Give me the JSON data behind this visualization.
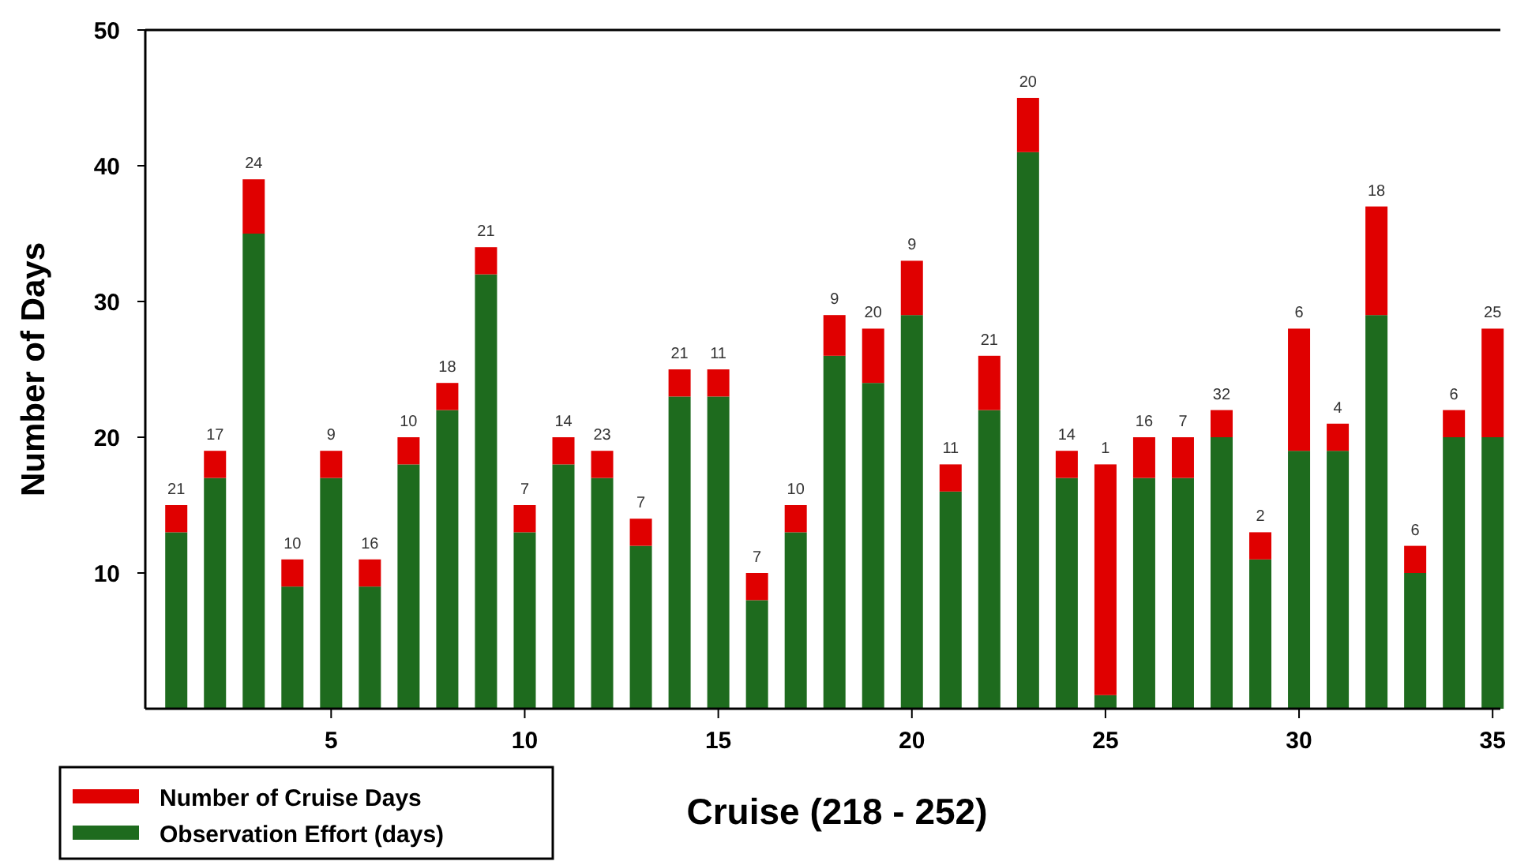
{
  "chart_data": {
    "type": "bar",
    "xlabel": "Cruise (218 - 252)",
    "ylabel": "Number of Days",
    "stacked": true,
    "x": [
      1,
      2,
      3,
      4,
      5,
      6,
      7,
      8,
      9,
      10,
      11,
      12,
      13,
      14,
      15,
      16,
      17,
      18,
      19,
      20,
      21,
      22,
      23,
      24,
      25,
      26,
      27,
      28,
      29,
      30,
      31,
      32,
      33,
      34,
      35
    ],
    "series": [
      {
        "name": "Observation Effort (days)",
        "color": "#1e6b1e",
        "values": [
          13,
          17,
          35,
          9,
          17,
          9,
          18,
          22,
          32,
          13,
          18,
          17,
          12,
          23,
          23,
          8,
          13,
          26,
          24,
          29,
          16,
          22,
          41,
          17,
          1,
          17,
          17,
          20,
          11,
          19,
          19,
          29,
          10,
          20,
          20
        ]
      },
      {
        "name": "Number of Cruise Days",
        "color": "#e00000",
        "values": [
          2,
          2,
          4,
          2,
          2,
          2,
          2,
          2,
          2,
          2,
          2,
          2,
          2,
          2,
          2,
          2,
          2,
          3,
          4,
          4,
          2,
          4,
          4,
          2,
          17,
          3,
          3,
          2,
          2,
          9,
          2,
          8,
          2,
          2,
          8
        ]
      }
    ],
    "xlim": [
      0.2,
      35.2
    ],
    "xticks": [
      5,
      10,
      15,
      20,
      25,
      30,
      35
    ],
    "ylim": [
      0,
      50
    ],
    "yticks": [
      10,
      20,
      30,
      40,
      50
    ],
    "grid": false,
    "legend": "bottom left",
    "annotations": [
      {
        "text": "21",
        "x": 1,
        "y": 15
      },
      {
        "text": "17",
        "x": 2,
        "y": 19
      },
      {
        "text": "24",
        "x": 3,
        "y": 39
      },
      {
        "text": "10",
        "x": 4,
        "y": 11
      },
      {
        "text": "9",
        "x": 5,
        "y": 19
      },
      {
        "text": "16",
        "x": 6,
        "y": 11
      },
      {
        "text": "10",
        "x": 7,
        "y": 20
      },
      {
        "text": "18",
        "x": 8,
        "y": 24
      },
      {
        "text": "21",
        "x": 9,
        "y": 34
      },
      {
        "text": "7",
        "x": 10,
        "y": 15
      },
      {
        "text": "14",
        "x": 11,
        "y": 20
      },
      {
        "text": "23",
        "x": 12,
        "y": 19
      },
      {
        "text": "7",
        "x": 13,
        "y": 14
      },
      {
        "text": "21",
        "x": 14,
        "y": 25
      },
      {
        "text": "11",
        "x": 15,
        "y": 25
      },
      {
        "text": "7",
        "x": 16,
        "y": 10
      },
      {
        "text": "10",
        "x": 17,
        "y": 15
      },
      {
        "text": "9",
        "x": 18,
        "y": 29
      },
      {
        "text": "20",
        "x": 19,
        "y": 28
      },
      {
        "text": "9",
        "x": 20,
        "y": 33
      },
      {
        "text": "11",
        "x": 21,
        "y": 18
      },
      {
        "text": "21",
        "x": 22,
        "y": 26
      },
      {
        "text": "20",
        "x": 23,
        "y": 45
      },
      {
        "text": "14",
        "x": 24,
        "y": 19
      },
      {
        "text": "1",
        "x": 25,
        "y": 18
      },
      {
        "text": "16",
        "x": 26,
        "y": 20
      },
      {
        "text": "7",
        "x": 27,
        "y": 20
      },
      {
        "text": "32",
        "x": 28,
        "y": 22
      },
      {
        "text": "2",
        "x": 29,
        "y": 13
      },
      {
        "text": "6",
        "x": 30,
        "y": 28
      },
      {
        "text": "4",
        "x": 31,
        "y": 21
      },
      {
        "text": "18",
        "x": 32,
        "y": 37
      },
      {
        "text": "6",
        "x": 33,
        "y": 12
      },
      {
        "text": "6",
        "x": 34,
        "y": 22
      },
      {
        "text": "25",
        "x": 35,
        "y": 28
      }
    ]
  }
}
